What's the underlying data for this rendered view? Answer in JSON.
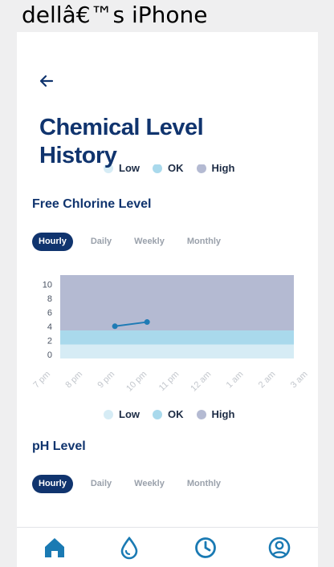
{
  "device": {
    "title": "dellâ€™s iPhone"
  },
  "header": {
    "title": "Chemical Level History"
  },
  "legend": [
    {
      "label": "Low",
      "color": "#d6ecf5"
    },
    {
      "label": "OK",
      "color": "#a9d9ec"
    },
    {
      "label": "High",
      "color": "#b4bad2"
    }
  ],
  "sections": [
    {
      "title": "Free Chlorine Level",
      "tabs": [
        "Hourly",
        "Daily",
        "Weekly",
        "Monthly"
      ],
      "active_tab": "Hourly"
    },
    {
      "title": "pH Level",
      "tabs": [
        "Hourly",
        "Daily",
        "Weekly",
        "Monthly"
      ],
      "active_tab": "Hourly"
    }
  ],
  "chart_data": {
    "type": "line",
    "title": "",
    "categories": [
      "7 pm",
      "8 pm",
      "9 pm",
      "10 pm",
      "11 pm",
      "12 am",
      "1 am",
      "2 am",
      "3 am"
    ],
    "series": [
      {
        "values": [
          null,
          null,
          4.0,
          4.6,
          null,
          null,
          null,
          null,
          null
        ]
      }
    ],
    "y_ticks": [
      0,
      2,
      4,
      6,
      8,
      10
    ],
    "ylim": [
      -0.6,
      11.3
    ],
    "bands": [
      {
        "name": "Low",
        "from": -0.6,
        "to": 1.4,
        "color": "#d6ecf5"
      },
      {
        "name": "OK",
        "from": 1.4,
        "to": 3.4,
        "color": "#a9d9ec"
      },
      {
        "name": "High",
        "from": 3.4,
        "to": 11.3,
        "color": "#b4bad2"
      }
    ],
    "line_color": "#1f7bb5"
  },
  "nav": [
    {
      "name": "home-icon",
      "active": true
    },
    {
      "name": "water-drop-icon",
      "active": false
    },
    {
      "name": "history-clock-icon",
      "active": false
    },
    {
      "name": "profile-icon",
      "active": false
    }
  ],
  "colors": {
    "primary": "#10346e",
    "accent": "#1a7ab3"
  }
}
